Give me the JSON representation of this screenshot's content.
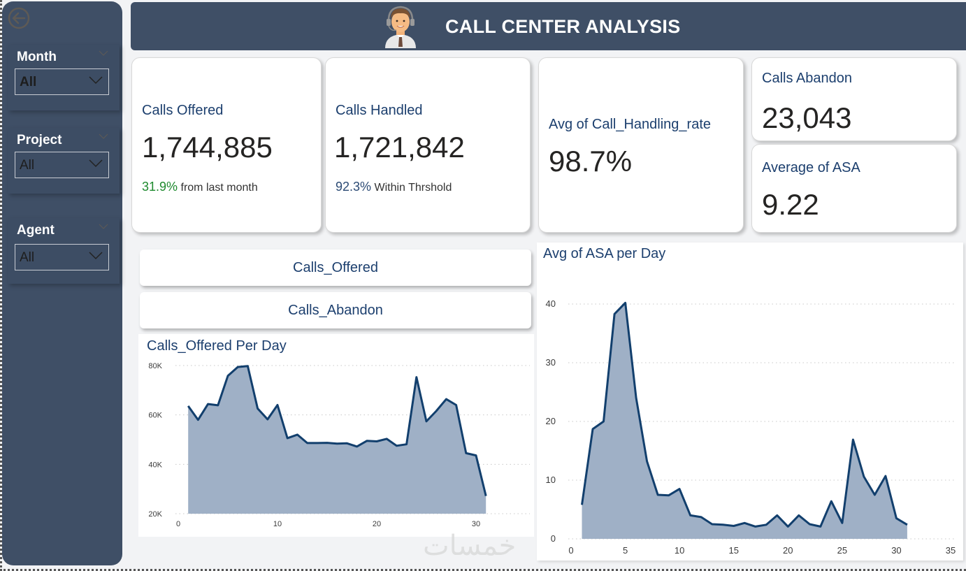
{
  "header": {
    "title": "CALL CENTER ANALYSIS",
    "logo_icon": "call-center-agent-avatar"
  },
  "sidebar": {
    "back_icon": "back-arrow-circle-icon",
    "slicers": [
      {
        "label": "Month",
        "value": "All"
      },
      {
        "label": "Project",
        "value": "All"
      },
      {
        "label": "Agent",
        "value": "All"
      }
    ]
  },
  "kpis": {
    "calls_offered": {
      "label": "Calls Offered",
      "value": "1,744,885",
      "sub_pct": "31.9%",
      "sub_text": "from last month"
    },
    "calls_handled": {
      "label": "Calls Handled",
      "value": "1,721,842",
      "sub_pct": "92.3%",
      "sub_text": "Within Thrshold"
    },
    "handling_rate": {
      "label": "Avg of Call_Handling_rate",
      "value": "98.7%"
    },
    "calls_abandon": {
      "label": "Calls Abandon",
      "value": "23,043"
    },
    "avg_asa": {
      "label": "Average of ASA",
      "value": "9.22"
    }
  },
  "buttons": {
    "calls_offered": "Calls_Offered",
    "calls_abandon": "Calls_Abandon"
  },
  "colors": {
    "navy": "#3f4f66",
    "line": "#123f6d",
    "area": "#9fb0c6",
    "green": "#1e8a2e"
  },
  "watermark": "خمسات",
  "chart_data": [
    {
      "type": "area",
      "title": "Calls_Offered Per Day",
      "xlabel": "",
      "ylabel": "",
      "x_ticks": [
        "0",
        "10",
        "20",
        "30"
      ],
      "x_tick_values": [
        0,
        10,
        20,
        30
      ],
      "y_ticks": [
        "20K",
        "40K",
        "60K",
        "80K"
      ],
      "y_tick_values": [
        20000,
        40000,
        60000,
        80000
      ],
      "xlim": [
        0,
        31
      ],
      "ylim": [
        20000,
        80000
      ],
      "grid": true,
      "x": [
        1,
        2,
        3,
        4,
        5,
        6,
        7,
        8,
        9,
        10,
        11,
        12,
        13,
        14,
        15,
        16,
        17,
        18,
        19,
        20,
        21,
        22,
        23,
        24,
        25,
        26,
        27,
        28,
        29,
        30,
        31
      ],
      "series": [
        {
          "name": "Calls_Offered",
          "values": [
            63600,
            58000,
            64400,
            63900,
            75800,
            79400,
            79800,
            62600,
            58200,
            64000,
            50600,
            52000,
            48600,
            48600,
            48700,
            48400,
            48500,
            47200,
            49500,
            49300,
            50300,
            47500,
            48100,
            75300,
            57400,
            61600,
            66400,
            64000,
            44500,
            43600,
            27200
          ]
        }
      ]
    },
    {
      "type": "area",
      "title": "Avg of ASA per Day",
      "xlabel": "",
      "ylabel": "",
      "x_ticks": [
        "0",
        "5",
        "10",
        "15",
        "20",
        "25",
        "30",
        "35"
      ],
      "x_tick_values": [
        0,
        5,
        10,
        15,
        20,
        25,
        30,
        35
      ],
      "y_ticks": [
        "0",
        "10",
        "20",
        "30",
        "40"
      ],
      "y_tick_values": [
        0,
        10,
        20,
        30,
        40
      ],
      "xlim": [
        0,
        35
      ],
      "ylim": [
        0,
        40
      ],
      "grid": true,
      "x": [
        1,
        2,
        3,
        4,
        5,
        6,
        7,
        8,
        9,
        10,
        11,
        12,
        13,
        14,
        15,
        16,
        17,
        18,
        19,
        20,
        21,
        22,
        23,
        24,
        25,
        26,
        27,
        28,
        29,
        30,
        31
      ],
      "series": [
        {
          "name": "Avg of ASA",
          "values": [
            5.8,
            18.7,
            20.0,
            38.3,
            40.2,
            24.0,
            13.2,
            7.5,
            7.4,
            8.5,
            4.0,
            3.7,
            2.5,
            2.4,
            2.2,
            2.7,
            2.1,
            2.4,
            4.0,
            2.1,
            4.0,
            2.5,
            2.1,
            6.4,
            2.7,
            16.9,
            10.6,
            7.5,
            10.7,
            3.5,
            2.4
          ]
        }
      ]
    }
  ]
}
